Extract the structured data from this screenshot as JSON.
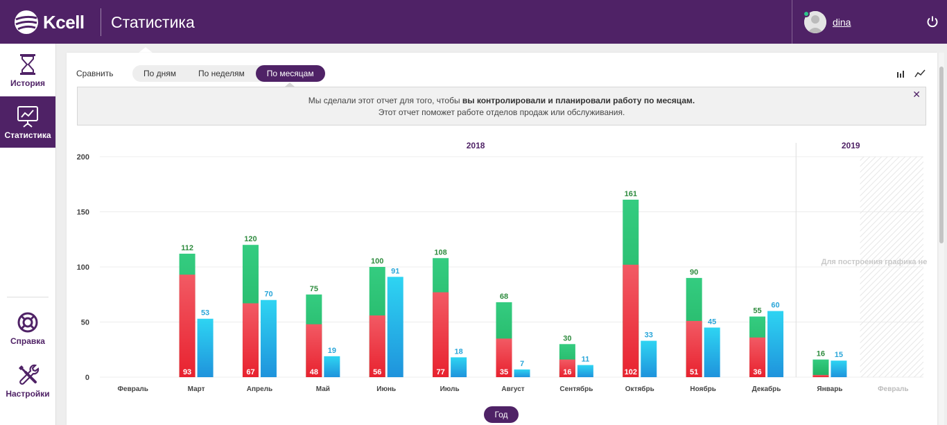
{
  "header": {
    "logo_text": "Kcell",
    "title": "Статистика",
    "username": "dina"
  },
  "sidebar": {
    "items": [
      {
        "label": "История",
        "icon": "hourglass-icon"
      },
      {
        "label": "Статистика",
        "icon": "presentation-chart-icon"
      },
      {
        "label": "Справка",
        "icon": "lifebuoy-icon"
      },
      {
        "label": "Настройки",
        "icon": "tools-icon"
      }
    ]
  },
  "toolbar": {
    "compare_label": "Сравнить",
    "tabs": [
      "По дням",
      "По неделям",
      "По месяцам"
    ],
    "active_tab": "По месяцам"
  },
  "info": {
    "line1_prefix": "Мы сделали этот отчет для того, чтобы ",
    "line1_bold": "вы контролировали и планировали работу по месяцам.",
    "line2": "Этот отчет поможет работе отделов продаж или обслуживания."
  },
  "year_button": "Год",
  "colors": {
    "brand": "#4f2266",
    "green_total": "#2dbf6f",
    "red_part": "#ef3a47",
    "blue_series": "#28b8e8",
    "green_label": "#2e8b3e",
    "blue_label": "#2aa6d9"
  },
  "chart_data": {
    "type": "bar",
    "year_labels": [
      "2018",
      "2019"
    ],
    "categories": [
      "Февраль",
      "Март",
      "Апрель",
      "Май",
      "Июнь",
      "Июль",
      "Август",
      "Сентябрь",
      "Октябрь",
      "Ноябрь",
      "Декабрь",
      "Январь",
      "Февраль"
    ],
    "category_year": [
      "2018",
      "2018",
      "2018",
      "2018",
      "2018",
      "2018",
      "2018",
      "2018",
      "2018",
      "2018",
      "2018",
      "2019",
      "2019"
    ],
    "series": [
      {
        "values": [
          null,
          112,
          120,
          75,
          100,
          108,
          68,
          30,
          161,
          90,
          55,
          16,
          null
        ]
      },
      {
        "values": [
          null,
          93,
          67,
          48,
          56,
          77,
          35,
          16,
          102,
          51,
          36,
          null,
          null
        ]
      },
      {
        "values": [
          null,
          53,
          70,
          19,
          91,
          18,
          7,
          11,
          33,
          45,
          60,
          15,
          null
        ]
      }
    ],
    "ylim": [
      0,
      200
    ],
    "yticks": [
      0,
      50,
      100,
      150,
      200
    ],
    "grid": true,
    "no_data_note": "Для построения графика не"
  }
}
